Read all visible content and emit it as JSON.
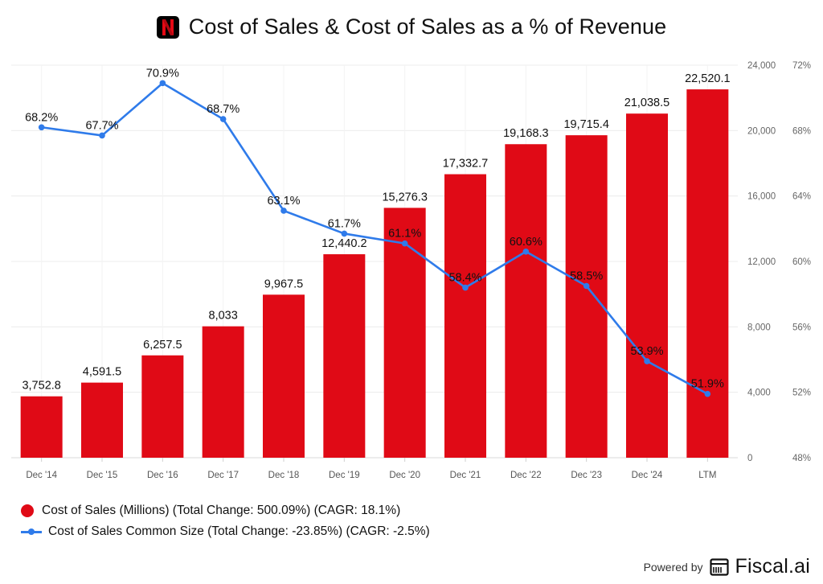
{
  "chart_data": {
    "type": "bar+line",
    "title": "Cost of Sales & Cost of Sales as a % of Revenue",
    "categories": [
      "Dec '14",
      "Dec '15",
      "Dec '16",
      "Dec '17",
      "Dec '18",
      "Dec '19",
      "Dec '20",
      "Dec '21",
      "Dec '22",
      "Dec '23",
      "Dec '24",
      "LTM"
    ],
    "series": [
      {
        "name": "Cost of Sales (Millions)",
        "kind": "bar",
        "axis": "left",
        "color": "#E00A16",
        "values": [
          3752.8,
          4591.5,
          6257.5,
          8033,
          9967.5,
          12440.2,
          15276.3,
          17332.7,
          19168.3,
          19715.4,
          21038.5,
          22520.1
        ],
        "labels": [
          "3,752.8",
          "4,591.5",
          "6,257.5",
          "8,033",
          "9,967.5",
          "12,440.2",
          "15,276.3",
          "17,332.7",
          "19,168.3",
          "19,715.4",
          "21,038.5",
          "22,520.1"
        ]
      },
      {
        "name": "Cost of Sales Common Size",
        "kind": "line",
        "axis": "right",
        "color": "#2F7BEA",
        "values": [
          68.2,
          67.7,
          70.9,
          68.7,
          63.1,
          61.7,
          61.1,
          58.4,
          60.6,
          58.5,
          53.9,
          51.9
        ],
        "labels": [
          "68.2%",
          "67.7%",
          "70.9%",
          "68.7%",
          "63.1%",
          "61.7%",
          "61.1%",
          "58.4%",
          "60.6%",
          "58.5%",
          "53.9%",
          "51.9%"
        ]
      }
    ],
    "y_left": {
      "range": [
        0,
        24000
      ],
      "ticks": [
        "0",
        "4,000",
        "8,000",
        "12,000",
        "16,000",
        "20,000",
        "24,000"
      ]
    },
    "y_right": {
      "range": [
        48,
        72
      ],
      "ticks": [
        "48%",
        "52%",
        "56%",
        "60%",
        "64%",
        "68%",
        "72%"
      ]
    },
    "grid": true,
    "legend_position": "bottom-left"
  },
  "header": {
    "title": "Cost of Sales & Cost of Sales as a % of Revenue",
    "logo_letter": "N"
  },
  "legend": {
    "bar_label": "Cost of Sales (Millions) (Total Change: 500.09%) (CAGR: 18.1%)",
    "line_label": "Cost of Sales Common Size (Total Change: -23.85%) (CAGR: -2.5%)"
  },
  "footer": {
    "powered_by": "Powered by",
    "brand": "Fiscal.ai"
  },
  "colors": {
    "bar": "#E00A16",
    "line": "#2F7BEA",
    "logo_bg": "#000000"
  }
}
